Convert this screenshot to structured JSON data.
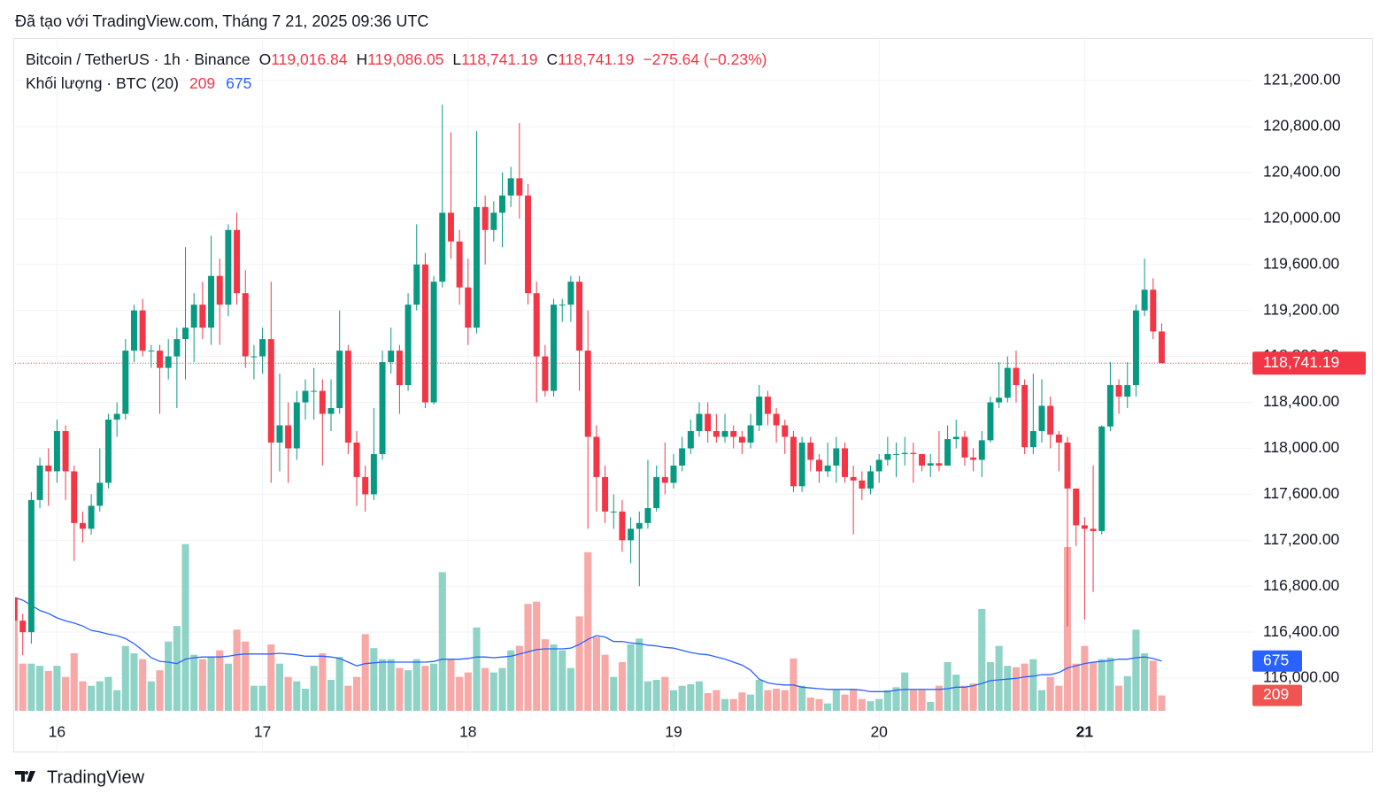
{
  "watermark": "Đã tạo với TradingView.com, Tháng 7 21, 2025 09:36 UTC",
  "footer": "TradingView",
  "legend": {
    "title": "Bitcoin / TetherUS · 1h · Binance",
    "open_key": "O",
    "high_key": "H",
    "low_key": "L",
    "close_key": "C",
    "open": "119,016.84",
    "high": "119,086.05",
    "low": "118,741.19",
    "close": "118,741.19",
    "change": "−275.64 (−0.23%)",
    "volume_title": "Khối lượng · BTC (20)"
  },
  "chart_data": {
    "type": "candlestick",
    "up_color": "#089981",
    "down_color": "#f23645",
    "ma_color": "#2962ff",
    "grid": true,
    "xlim": [
      0.1,
      144.6
    ],
    "xticks": [
      {
        "value": 5,
        "label": "16"
      },
      {
        "value": 29,
        "label": "17"
      },
      {
        "value": 53,
        "label": "18"
      },
      {
        "value": 77,
        "label": "19"
      },
      {
        "value": 101,
        "label": "20"
      },
      {
        "value": 125,
        "label": "21"
      }
    ],
    "ylim": [
      115400,
      121570
    ],
    "yticks": [
      {
        "value": 116000,
        "label": "116,000.00"
      },
      {
        "value": 116400,
        "label": "116,400.00"
      },
      {
        "value": 116800,
        "label": "116,800.00"
      },
      {
        "value": 117200,
        "label": "117,200.00"
      },
      {
        "value": 117600,
        "label": "117,600.00"
      },
      {
        "value": 118000,
        "label": "118,000.00"
      },
      {
        "value": 118400,
        "label": "118,400.00"
      },
      {
        "value": 118800,
        "label": "118,800.00"
      },
      {
        "value": 119200,
        "label": "119,200.00"
      },
      {
        "value": 119600,
        "label": "119,600.00"
      },
      {
        "value": 120000,
        "label": "120,000.00"
      },
      {
        "value": 120400,
        "label": "120,400.00"
      },
      {
        "value": 120800,
        "label": "120,800.00"
      },
      {
        "value": 121200,
        "label": "121,200.00"
      }
    ],
    "volume_lim": [
      0,
      9000
    ],
    "open": [
      116700,
      116500,
      116400,
      117550,
      117850,
      117800,
      118150,
      117800,
      117350,
      117300,
      117500,
      117700,
      118250,
      118300,
      118850,
      119200,
      118850,
      118850,
      118700,
      118800,
      118950,
      119050,
      119250,
      119050,
      119500,
      119250,
      119900,
      119350,
      118800,
      118800,
      118950,
      118050,
      118200,
      118000,
      118400,
      118500,
      118500,
      118300,
      118350,
      118850,
      118050,
      117750,
      117600,
      117950,
      118750,
      118850,
      118550,
      119250,
      119600,
      118400,
      119450,
      120050,
      119800,
      119400,
      119050,
      120100,
      119900,
      120050,
      120200,
      120350,
      120200,
      119350,
      118800,
      118500,
      119250,
      119250,
      119450,
      118850,
      118100,
      117750,
      117450,
      117450,
      117200,
      117300,
      117350,
      117480,
      117750,
      117700,
      117850,
      118000,
      118150,
      118300,
      118150,
      118100,
      118150,
      118100,
      118050,
      118200,
      118450,
      118300,
      118200,
      118100,
      117670,
      118050,
      117900,
      117800,
      117850,
      118000,
      117750,
      117720,
      117650,
      117800,
      117900,
      117950,
      117950,
      117960,
      117950,
      117850,
      117870,
      117850,
      118080,
      118100,
      117920,
      117900,
      118070,
      118400,
      118440,
      118700,
      118550,
      118010,
      118150,
      118370,
      118120,
      118050,
      117650,
      117330,
      117300,
      117280,
      118190,
      118550,
      118450,
      118550,
      119200,
      119380,
      119016.84
    ],
    "high": [
      116780,
      116560,
      117620,
      117920,
      118000,
      118250,
      118200,
      117850,
      117450,
      117600,
      118000,
      118300,
      118400,
      118950,
      119250,
      119300,
      118900,
      118900,
      118950,
      119050,
      119750,
      119350,
      119450,
      119850,
      119650,
      119950,
      120050,
      119550,
      118900,
      119050,
      119450,
      118650,
      118400,
      118500,
      118600,
      118700,
      118600,
      118600,
      119200,
      118900,
      118150,
      117850,
      118350,
      118850,
      119050,
      118900,
      119350,
      119950,
      119700,
      119500,
      120990,
      120750,
      119900,
      119650,
      120760,
      120200,
      120150,
      120400,
      120450,
      120830,
      120300,
      119450,
      118900,
      119300,
      119300,
      119500,
      119500,
      119200,
      118200,
      117850,
      117600,
      117550,
      117400,
      117450,
      117900,
      117850,
      118050,
      117950,
      118100,
      118250,
      118400,
      118400,
      118300,
      118300,
      118200,
      118150,
      118300,
      118550,
      118500,
      118350,
      118250,
      118150,
      118100,
      118100,
      117950,
      118050,
      118100,
      118050,
      117850,
      117800,
      117850,
      117950,
      118100,
      118050,
      118100,
      118050,
      117950,
      117950,
      118150,
      118200,
      118250,
      118150,
      118000,
      118150,
      118450,
      118750,
      118800,
      118850,
      118600,
      118650,
      118600,
      118450,
      118150,
      118100,
      117650,
      117400,
      117850,
      118200,
      118750,
      118600,
      118750,
      119250,
      119650,
      119480,
      119086.05
    ],
    "low": [
      116350,
      116200,
      116300,
      117480,
      117500,
      117700,
      117550,
      117020,
      117180,
      117250,
      117450,
      117650,
      118100,
      118250,
      118750,
      118800,
      118700,
      118300,
      118600,
      118350,
      118600,
      118750,
      118950,
      118900,
      118900,
      119150,
      119250,
      118700,
      118600,
      118650,
      117700,
      117800,
      117700,
      117900,
      118250,
      118250,
      117850,
      118150,
      118300,
      117950,
      117500,
      117450,
      117550,
      117900,
      118650,
      118300,
      118500,
      119200,
      118350,
      118380,
      119400,
      119650,
      119250,
      118900,
      119000,
      119600,
      119800,
      119750,
      120100,
      120000,
      119250,
      118400,
      118450,
      118450,
      119100,
      119100,
      118500,
      117300,
      117450,
      117350,
      117300,
      117100,
      117000,
      116800,
      117300,
      117450,
      117600,
      117650,
      117800,
      117950,
      118100,
      118050,
      118050,
      118050,
      118000,
      117950,
      118000,
      118150,
      118200,
      118050,
      117950,
      117620,
      117620,
      117800,
      117700,
      117750,
      117700,
      117700,
      117250,
      117550,
      117600,
      117700,
      117850,
      117750,
      117850,
      117700,
      117800,
      117750,
      117800,
      117850,
      118000,
      117850,
      117800,
      117750,
      118050,
      118350,
      118400,
      118400,
      117950,
      117950,
      118050,
      118000,
      117800,
      116450,
      117150,
      116510,
      116750,
      117250,
      118150,
      118300,
      118350,
      118450,
      119150,
      118950,
      118741.19
    ],
    "close": [
      116500,
      116400,
      117550,
      117850,
      117800,
      118150,
      117800,
      117350,
      117300,
      117500,
      117700,
      118250,
      118300,
      118850,
      119200,
      118850,
      118850,
      118700,
      118800,
      118950,
      119050,
      119250,
      119050,
      119500,
      119250,
      119900,
      119350,
      118800,
      118800,
      118950,
      118050,
      118200,
      118000,
      118400,
      118500,
      118500,
      118300,
      118350,
      118850,
      118050,
      117750,
      117600,
      117950,
      118750,
      118850,
      118550,
      119250,
      119600,
      118400,
      119450,
      120050,
      119800,
      119400,
      119050,
      120100,
      119900,
      120050,
      120200,
      120350,
      120200,
      119350,
      118800,
      118500,
      119250,
      119250,
      119450,
      118850,
      118100,
      117750,
      117450,
      117450,
      117200,
      117300,
      117350,
      117480,
      117750,
      117700,
      117850,
      118000,
      118150,
      118300,
      118150,
      118100,
      118150,
      118100,
      118050,
      118200,
      118450,
      118300,
      118200,
      118100,
      117670,
      118050,
      117900,
      117800,
      117850,
      118000,
      117750,
      117720,
      117650,
      117800,
      117900,
      117950,
      117950,
      117960,
      117950,
      117850,
      117870,
      117850,
      118080,
      118100,
      117920,
      117900,
      118070,
      118400,
      118440,
      118700,
      118550,
      118010,
      118150,
      118370,
      118120,
      118050,
      117650,
      117330,
      117300,
      117280,
      118190,
      118550,
      118450,
      118550,
      119200,
      119380,
      119016.84,
      118741.19
    ],
    "volume": [
      1540,
      640,
      640,
      610,
      540,
      610,
      460,
      780,
      400,
      340,
      400,
      460,
      280,
      880,
      780,
      700,
      400,
      550,
      940,
      1150,
      2260,
      760,
      700,
      730,
      820,
      640,
      1100,
      940,
      340,
      340,
      900,
      640,
      460,
      400,
      300,
      610,
      780,
      420,
      730,
      340,
      460,
      1040,
      850,
      700,
      700,
      580,
      550,
      700,
      610,
      640,
      1880,
      700,
      460,
      520,
      1130,
      580,
      520,
      580,
      820,
      880,
      1450,
      1480,
      970,
      900,
      820,
      580,
      1280,
      2150,
      1000,
      760,
      460,
      660,
      900,
      980,
      400,
      420,
      460,
      280,
      340,
      360,
      400,
      240,
      280,
      160,
      160,
      250,
      220,
      420,
      280,
      300,
      280,
      710,
      340,
      180,
      160,
      100,
      280,
      220,
      300,
      160,
      130,
      160,
      280,
      320,
      520,
      280,
      280,
      120,
      340,
      660,
      490,
      340,
      370,
      1380,
      660,
      880,
      610,
      590,
      640,
      700,
      280,
      460,
      340,
      2220,
      640,
      880,
      660,
      700,
      720,
      340,
      470,
      1100,
      780,
      680,
      209
    ],
    "volume_ma": [
      1536,
      1500,
      1430,
      1360,
      1320,
      1260,
      1220,
      1190,
      1150,
      1090,
      1070,
      1040,
      1020,
      980,
      910,
      820,
      720,
      670,
      660,
      640,
      700,
      720,
      730,
      730,
      730,
      740,
      760,
      770,
      770,
      770,
      770,
      780,
      770,
      760,
      740,
      740,
      740,
      730,
      710,
      660,
      610,
      640,
      650,
      660,
      660,
      660,
      660,
      660,
      660,
      670,
      700,
      700,
      700,
      710,
      730,
      730,
      720,
      730,
      740,
      770,
      800,
      830,
      840,
      840,
      840,
      850,
      900,
      970,
      1020,
      1000,
      940,
      940,
      920,
      910,
      890,
      880,
      860,
      850,
      820,
      790,
      770,
      760,
      730,
      700,
      660,
      620,
      550,
      430,
      380,
      360,
      350,
      350,
      320,
      310,
      300,
      290,
      290,
      290,
      290,
      280,
      260,
      260,
      260,
      280,
      290,
      290,
      290,
      290,
      290,
      300,
      320,
      320,
      340,
      370,
      410,
      420,
      430,
      440,
      460,
      470,
      490,
      490,
      520,
      580,
      610,
      640,
      660,
      670,
      680,
      700,
      700,
      720,
      730,
      710,
      675
    ]
  }
}
